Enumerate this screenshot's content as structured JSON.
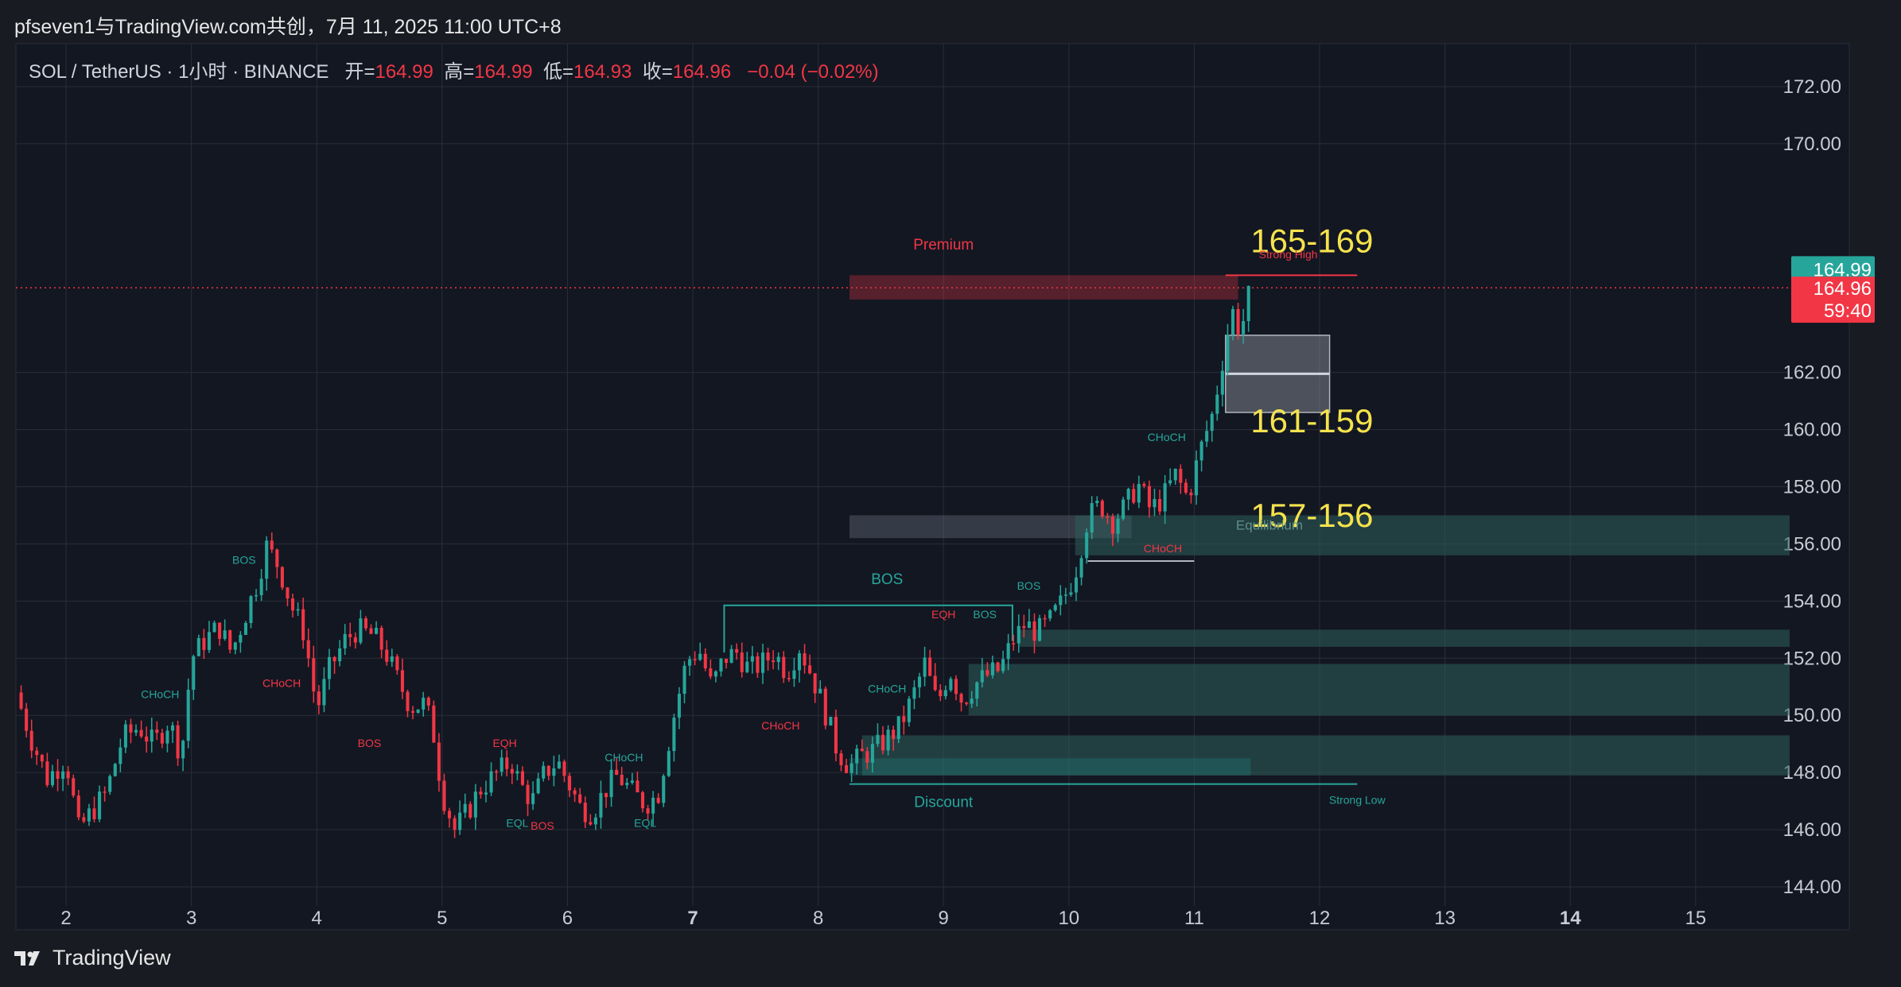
{
  "header": {
    "attribution": "pfseven1与TradingView.com共创，7月 11, 2025 11:00 UTC+8"
  },
  "legend": {
    "symbol": "SOL / TetherUS · 1小时 · BINANCE",
    "open_label": "开=",
    "open": "164.99",
    "high_label": "高=",
    "high": "164.99",
    "low_label": "低=",
    "low": "164.93",
    "close_label": "收=",
    "close": "164.96",
    "change": "−0.04 (−0.02%)"
  },
  "price_badges": {
    "upper": "164.99",
    "current": "164.96",
    "countdown": "59:40"
  },
  "brand": {
    "name": "TradingView"
  },
  "colors": {
    "background": "#131722",
    "up": "#26a69a",
    "down": "#f23645",
    "annotation_yellow": "#f5e34d",
    "grid": "#2a2e39"
  },
  "chart_data": {
    "type": "candlestick",
    "x_ticks": [
      {
        "day": 2,
        "label": "2"
      },
      {
        "day": 3,
        "label": "3"
      },
      {
        "day": 4,
        "label": "4"
      },
      {
        "day": 5,
        "label": "5"
      },
      {
        "day": 6,
        "label": "6"
      },
      {
        "day": 7,
        "label": "7"
      },
      {
        "day": 8,
        "label": "8"
      },
      {
        "day": 9,
        "label": "9"
      },
      {
        "day": 10,
        "label": "10"
      },
      {
        "day": 11,
        "label": "11"
      },
      {
        "day": 12,
        "label": "12"
      },
      {
        "day": 13,
        "label": "13"
      },
      {
        "day": 14,
        "label": "14"
      },
      {
        "day": 15,
        "label": "15"
      }
    ],
    "y_ticks": [
      144,
      146,
      148,
      150,
      152,
      154,
      156,
      158,
      160,
      162,
      170,
      172
    ],
    "y_tick_labels": [
      "144.00",
      "146.00",
      "148.00",
      "150.00",
      "152.00",
      "154.00",
      "156.00",
      "158.00",
      "160.00",
      "162.00",
      "170.00",
      "172.00"
    ],
    "ylim": [
      142.5,
      173.5
    ],
    "xlim": [
      1.6,
      15.75
    ],
    "path_points": [
      [
        1.6,
        150.8
      ],
      [
        1.72,
        149.2
      ],
      [
        1.85,
        147.8
      ],
      [
        2.0,
        148.5
      ],
      [
        2.1,
        146.0
      ],
      [
        2.2,
        146.6
      ],
      [
        2.32,
        147.3
      ],
      [
        2.45,
        149.2
      ],
      [
        2.58,
        149.6
      ],
      [
        2.7,
        149.0
      ],
      [
        2.82,
        149.8
      ],
      [
        2.92,
        148.6
      ],
      [
        3.0,
        152.0
      ],
      [
        3.1,
        152.6
      ],
      [
        3.22,
        153.1
      ],
      [
        3.32,
        152.2
      ],
      [
        3.42,
        153.4
      ],
      [
        3.52,
        154.6
      ],
      [
        3.6,
        155.9
      ],
      [
        3.7,
        155.2
      ],
      [
        3.8,
        153.8
      ],
      [
        3.9,
        152.9
      ],
      [
        4.0,
        150.2
      ],
      [
        4.1,
        151.6
      ],
      [
        4.22,
        152.6
      ],
      [
        4.32,
        153.0
      ],
      [
        4.45,
        152.8
      ],
      [
        4.55,
        152.2
      ],
      [
        4.65,
        151.2
      ],
      [
        4.75,
        150.3
      ],
      [
        4.85,
        150.4
      ],
      [
        4.92,
        149.7
      ],
      [
        5.0,
        147.3
      ],
      [
        5.1,
        146.0
      ],
      [
        5.2,
        146.6
      ],
      [
        5.3,
        147.4
      ],
      [
        5.42,
        147.9
      ],
      [
        5.55,
        148.4
      ],
      [
        5.62,
        147.6
      ],
      [
        5.72,
        147.0
      ],
      [
        5.82,
        148.0
      ],
      [
        5.92,
        148.4
      ],
      [
        6.0,
        147.7
      ],
      [
        6.1,
        146.8
      ],
      [
        6.2,
        146.6
      ],
      [
        6.3,
        147.4
      ],
      [
        6.4,
        147.9
      ],
      [
        6.52,
        147.3
      ],
      [
        6.62,
        146.9
      ],
      [
        6.72,
        147.2
      ],
      [
        6.85,
        150.0
      ],
      [
        6.95,
        151.9
      ],
      [
        7.05,
        152.3
      ],
      [
        7.15,
        151.0
      ],
      [
        7.25,
        152.0
      ],
      [
        7.35,
        152.2
      ],
      [
        7.45,
        151.6
      ],
      [
        7.55,
        151.8
      ],
      [
        7.65,
        152.2
      ],
      [
        7.75,
        151.5
      ],
      [
        7.85,
        152.4
      ],
      [
        7.95,
        151.4
      ],
      [
        8.05,
        150.2
      ],
      [
        8.15,
        148.8
      ],
      [
        8.25,
        148.2
      ],
      [
        8.35,
        148.6
      ],
      [
        8.45,
        148.8
      ],
      [
        8.55,
        149.2
      ],
      [
        8.65,
        149.6
      ],
      [
        8.75,
        150.6
      ],
      [
        8.85,
        151.8
      ],
      [
        8.95,
        150.4
      ],
      [
        9.05,
        151.6
      ],
      [
        9.15,
        150.5
      ],
      [
        9.25,
        151.1
      ],
      [
        9.35,
        151.4
      ],
      [
        9.45,
        151.6
      ],
      [
        9.55,
        152.6
      ],
      [
        9.65,
        153.2
      ],
      [
        9.75,
        152.9
      ],
      [
        9.85,
        153.3
      ],
      [
        9.95,
        154.0
      ],
      [
        10.05,
        155.0
      ],
      [
        10.15,
        156.9
      ],
      [
        10.25,
        157.4
      ],
      [
        10.35,
        156.8
      ],
      [
        10.45,
        157.3
      ],
      [
        10.55,
        158.1
      ],
      [
        10.65,
        157.2
      ],
      [
        10.75,
        157.6
      ],
      [
        10.85,
        158.4
      ],
      [
        10.95,
        157.6
      ],
      [
        11.05,
        159.3
      ],
      [
        11.15,
        160.6
      ],
      [
        11.22,
        162.3
      ],
      [
        11.3,
        164.2
      ],
      [
        11.37,
        163.4
      ],
      [
        11.45,
        164.96
      ]
    ],
    "zones": [
      {
        "x0": 8.25,
        "x1": 11.35,
        "y0": 164.55,
        "y1": 165.4,
        "kind": "premium"
      },
      {
        "x0": 11.25,
        "x1": 12.08,
        "y0": 160.6,
        "y1": 163.3,
        "kind": "fvg"
      },
      {
        "x0": 8.25,
        "x1": 10.5,
        "y0": 156.2,
        "y1": 157.0,
        "kind": "equilibrium"
      },
      {
        "x0": 10.05,
        "x1": 15.75,
        "y0": 155.6,
        "y1": 157.0,
        "kind": "ob"
      },
      {
        "x0": 9.6,
        "x1": 15.75,
        "y0": 152.4,
        "y1": 153.0,
        "kind": "ob"
      },
      {
        "x0": 9.2,
        "x1": 15.75,
        "y0": 150.0,
        "y1": 151.8,
        "kind": "ob"
      },
      {
        "x0": 8.35,
        "x1": 15.75,
        "y0": 147.9,
        "y1": 149.3,
        "kind": "ob"
      },
      {
        "x0": 8.25,
        "x1": 11.45,
        "y0": 147.9,
        "y1": 148.5,
        "kind": "discount"
      }
    ],
    "price_lines": [
      {
        "x0": 11.25,
        "x1": 12.3,
        "y": 165.4,
        "color": "#f23645"
      },
      {
        "x0": 8.25,
        "x1": 12.3,
        "y": 147.6,
        "color": "#26a69a"
      },
      {
        "x0": 10.15,
        "x1": 11.0,
        "y": 155.4,
        "color": "#b2b5be"
      }
    ],
    "annotations": [
      {
        "text": "Premium",
        "x": 9.0,
        "y": 166.3,
        "color": "#f23645",
        "size": 19
      },
      {
        "text": "165-169",
        "x": 11.45,
        "y": 166.2,
        "color": "#f5e34d",
        "size": 42
      },
      {
        "text": "161-159",
        "x": 11.45,
        "y": 159.9,
        "color": "#f5e34d",
        "size": 42
      },
      {
        "text": "157-156",
        "x": 11.45,
        "y": 156.6,
        "color": "#f5e34d",
        "size": 42
      },
      {
        "text": "Equilibrium",
        "x": 11.6,
        "y": 156.5,
        "color": "#5f8f8a",
        "size": 17
      },
      {
        "text": "Discount",
        "x": 9.0,
        "y": 146.8,
        "color": "#26a69a",
        "size": 19
      },
      {
        "text": "Strong Low",
        "x": 12.3,
        "y": 146.9,
        "color": "#26a69a",
        "size": 14
      },
      {
        "text": "BOS",
        "x": 8.55,
        "y": 154.6,
        "color": "#26a69a",
        "size": 19
      },
      {
        "text": "BOS",
        "x": 3.42,
        "y": 155.3,
        "color": "#26a69a",
        "size": 14
      },
      {
        "text": "CHoCH",
        "x": 2.75,
        "y": 150.6,
        "color": "#26a69a",
        "size": 14
      },
      {
        "text": "CHoCH",
        "x": 3.72,
        "y": 151.0,
        "color": "#f23645",
        "size": 14
      },
      {
        "text": "BOS",
        "x": 4.42,
        "y": 148.9,
        "color": "#f23645",
        "size": 14
      },
      {
        "text": "EQH",
        "x": 5.5,
        "y": 148.9,
        "color": "#f23645",
        "size": 14
      },
      {
        "text": "EQL",
        "x": 5.6,
        "y": 146.1,
        "color": "#26a69a",
        "size": 14
      },
      {
        "text": "BOS",
        "x": 5.8,
        "y": 146.0,
        "color": "#f23645",
        "size": 14
      },
      {
        "text": "CHoCH",
        "x": 6.45,
        "y": 148.4,
        "color": "#26a69a",
        "size": 14
      },
      {
        "text": "EQL",
        "x": 6.62,
        "y": 146.1,
        "color": "#26a69a",
        "size": 14
      },
      {
        "text": "CHoCH",
        "x": 7.7,
        "y": 149.5,
        "color": "#f23645",
        "size": 14
      },
      {
        "text": "CHoCH",
        "x": 8.55,
        "y": 150.8,
        "color": "#26a69a",
        "size": 14
      },
      {
        "text": "EQH",
        "x": 9.0,
        "y": 153.4,
        "color": "#f23645",
        "size": 14
      },
      {
        "text": "BOS",
        "x": 9.33,
        "y": 153.4,
        "color": "#26a69a",
        "size": 14
      },
      {
        "text": "BOS",
        "x": 9.68,
        "y": 154.4,
        "color": "#26a69a",
        "size": 14
      },
      {
        "text": "CHoCH",
        "x": 10.78,
        "y": 159.6,
        "color": "#26a69a",
        "size": 14
      },
      {
        "text": "CHoCH",
        "x": 10.75,
        "y": 155.7,
        "color": "#f23645",
        "size": 14
      },
      {
        "text": "Strong High",
        "x": 11.75,
        "y": 166.0,
        "color": "#f23645",
        "size": 14
      }
    ],
    "current_price": 164.96
  }
}
